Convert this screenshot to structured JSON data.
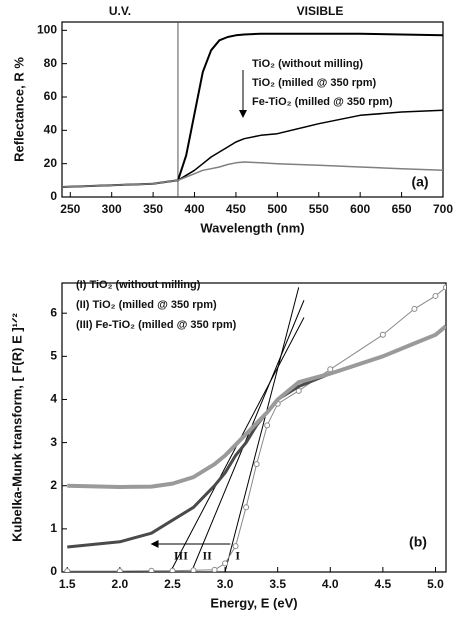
{
  "chart_data": [
    {
      "type": "line",
      "panel_label": "(a)",
      "xlabel": "Wavelength (nm)",
      "ylabel": "Reflectance, R %",
      "region_labels": [
        "U.V.",
        "VISIBLE"
      ],
      "vline": 380,
      "x": [
        240,
        300,
        350,
        380,
        390,
        400,
        410,
        420,
        430,
        440,
        450,
        460,
        480,
        500,
        550,
        600,
        650,
        700
      ],
      "series": [
        {
          "name": "TiO₂ (without milling)",
          "color": "#000000",
          "line_width": 2,
          "values": [
            6,
            7,
            8,
            10,
            25,
            50,
            75,
            88,
            94,
            96,
            97,
            97.5,
            98,
            98,
            98,
            98,
            97.5,
            97
          ]
        },
        {
          "name": "TiO₂ (milled @ 350 rpm)",
          "color": "#000000",
          "line_width": 1.5,
          "values": [
            6,
            7,
            8,
            10,
            13,
            16,
            20,
            24,
            27,
            30,
            33,
            35,
            37,
            38,
            44,
            49,
            51,
            52
          ]
        },
        {
          "name": "Fe-TiO₂ (milled @ 350 rpm)",
          "color": "#808080",
          "line_width": 1.5,
          "values": [
            6,
            7,
            8,
            10,
            12,
            14,
            16,
            17,
            18,
            19.5,
            20.5,
            21,
            20.5,
            20,
            19,
            18,
            17,
            16
          ]
        }
      ],
      "xlim": [
        240,
        700
      ],
      "ylim": [
        0,
        105
      ],
      "xticks": [
        250,
        300,
        350,
        400,
        450,
        500,
        550,
        600,
        650,
        700
      ],
      "yticks": [
        0,
        20,
        40,
        60,
        80,
        100
      ]
    },
    {
      "type": "line",
      "panel_label": "(b)",
      "xlabel": "Energy, E (eV)",
      "ylabel": "Kubelka-Munk transform, [ F(R) E ]¹ᐟ²",
      "arrow_labels": [
        "III",
        "II",
        "I"
      ],
      "x": [
        1.5,
        2.0,
        2.3,
        2.5,
        2.7,
        2.9,
        3.0,
        3.1,
        3.2,
        3.3,
        3.4,
        3.5,
        3.7,
        4.0,
        4.5,
        4.8,
        5.0,
        5.1
      ],
      "series": [
        {
          "name": "(I) TiO₂ (without milling)",
          "color": "#8a8a8a",
          "line_width": 1,
          "marker": "o",
          "values": [
            0.02,
            0.02,
            0.03,
            0.03,
            0.04,
            0.05,
            0.2,
            0.6,
            1.5,
            2.5,
            3.4,
            3.9,
            4.2,
            4.7,
            5.5,
            6.1,
            6.4,
            6.6
          ]
        },
        {
          "name": "(II) TiO₂ (milled @ 350 rpm)",
          "color": "#4a4a4a",
          "line_width": 3,
          "values": [
            0.58,
            0.7,
            0.9,
            1.2,
            1.5,
            2.0,
            2.3,
            2.7,
            3.0,
            3.4,
            3.7,
            4.0,
            4.3,
            4.6,
            5.0,
            5.3,
            5.5,
            5.7
          ]
        },
        {
          "name": "(III) Fe-TiO₂ (milled @ 350 rpm)",
          "color": "#9a9a9a",
          "line_width": 4,
          "values": [
            2.0,
            1.97,
            1.98,
            2.05,
            2.2,
            2.5,
            2.7,
            2.95,
            3.2,
            3.45,
            3.7,
            4.0,
            4.4,
            4.6,
            5.0,
            5.3,
            5.5,
            5.7
          ]
        }
      ],
      "tangent_lines": [
        {
          "x": [
            3.0,
            3.7
          ],
          "y": [
            0,
            6.6
          ]
        },
        {
          "x": [
            2.68,
            3.75
          ],
          "y": [
            0,
            6.3
          ]
        },
        {
          "x": [
            2.48,
            3.75
          ],
          "y": [
            0,
            5.9
          ]
        }
      ],
      "xlim": [
        1.45,
        5.1
      ],
      "ylim": [
        0,
        6.7
      ],
      "xticks": [
        1.5,
        {
          "value": 2,
          "label": "2.0"
        },
        2.5,
        {
          "value": 3,
          "label": "3.0"
        },
        3.5,
        {
          "value": 4,
          "label": "4.0"
        },
        4.5,
        {
          "value": 5,
          "label": "5.0"
        }
      ],
      "yticks": [
        0,
        1,
        2,
        3,
        4,
        5,
        6
      ]
    }
  ]
}
